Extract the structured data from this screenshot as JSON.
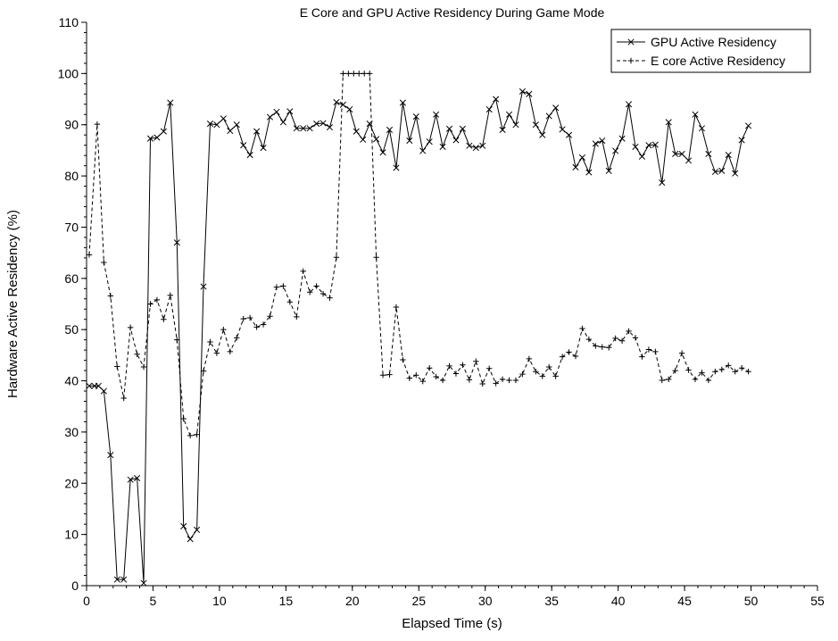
{
  "chart_data": {
    "type": "line",
    "title": "E Core and GPU Active Residency During Game Mode",
    "xlabel": "Elapsed Time (s)",
    "ylabel": "Hardware Active Residency (%)",
    "xlim": [
      0,
      55
    ],
    "ylim": [
      0,
      110
    ],
    "x_ticks": [
      0,
      5,
      10,
      15,
      20,
      25,
      30,
      35,
      40,
      45,
      50,
      55
    ],
    "y_ticks": [
      0,
      10,
      20,
      30,
      40,
      50,
      60,
      70,
      80,
      90,
      100,
      110
    ],
    "x_tick_labels": [
      "0",
      "5",
      "10",
      "15",
      "20",
      "25",
      "30",
      "35",
      "40",
      "45",
      "50",
      "55"
    ],
    "y_tick_labels": [
      "0",
      "10",
      "20",
      "30",
      "40",
      "50",
      "60",
      "70",
      "80",
      "90",
      "100",
      "110"
    ],
    "x_minor_step": 1,
    "y_minor_step": 2,
    "grid": false,
    "legend_position": "top-right",
    "series": [
      {
        "name": "GPU Active Residency",
        "line_style": "solid",
        "marker": "x",
        "color": "#000000",
        "x": [
          0.2,
          0.6,
          0.9,
          1.3,
          1.8,
          2.3,
          2.8,
          3.3,
          3.8,
          4.3,
          4.8,
          5.3,
          5.8,
          6.3,
          6.8,
          7.3,
          7.8,
          8.3,
          8.8,
          9.3,
          9.8,
          10.3,
          10.8,
          11.3,
          11.8,
          12.3,
          12.8,
          13.3,
          13.8,
          14.3,
          14.8,
          15.3,
          15.8,
          16.3,
          16.8,
          17.3,
          17.8,
          18.3,
          18.8,
          19.3,
          19.8,
          20.3,
          20.8,
          21.3,
          21.8,
          22.3,
          22.8,
          23.3,
          23.8,
          24.3,
          24.8,
          25.3,
          25.8,
          26.3,
          26.8,
          27.3,
          27.8,
          28.3,
          28.8,
          29.3,
          29.8,
          30.3,
          30.8,
          31.3,
          31.8,
          32.3,
          32.8,
          33.3,
          33.8,
          34.3,
          34.8,
          35.3,
          35.8,
          36.3,
          36.8,
          37.3,
          37.8,
          38.3,
          38.8,
          39.3,
          39.8,
          40.3,
          40.8,
          41.3,
          41.8,
          42.3,
          42.8,
          43.3,
          43.8,
          44.3,
          44.8,
          45.3,
          45.8,
          46.3,
          46.8,
          47.3,
          47.8,
          48.3,
          48.8,
          49.3,
          49.8
        ],
        "values": [
          39.0,
          39.0,
          39.0,
          38.0,
          25.5,
          1.2,
          1.2,
          20.7,
          21.0,
          0.5,
          87.3,
          87.5,
          88.7,
          94.3,
          67.0,
          11.6,
          9.1,
          10.9,
          58.4,
          90.2,
          90.0,
          91.2,
          88.8,
          90.0,
          86.0,
          84.1,
          88.7,
          85.5,
          91.5,
          92.5,
          90.5,
          92.6,
          89.3,
          89.3,
          89.3,
          90.2,
          90.3,
          89.5,
          94.4,
          93.9,
          93.0,
          88.7,
          87.1,
          90.2,
          87.2,
          84.6,
          89.0,
          81.6,
          94.3,
          86.9,
          91.6,
          84.9,
          86.7,
          92.0,
          85.7,
          89.2,
          87.0,
          89.2,
          85.9,
          85.5,
          85.9,
          93.0,
          95.0,
          89.0,
          92.0,
          90.0,
          96.5,
          96.0,
          90.0,
          88.0,
          91.7,
          93.3,
          89.1,
          88.0,
          81.7,
          83.6,
          80.7,
          86.3,
          86.9,
          81.0,
          84.9,
          87.3,
          94.0,
          85.7,
          83.8,
          86.0,
          86.1,
          78.7,
          90.5,
          84.3,
          84.3,
          83.0,
          92.0,
          89.3,
          84.3,
          80.8,
          81.0,
          84.1,
          80.5,
          87.0,
          89.8
        ]
      },
      {
        "name": "E core Active Residency",
        "line_style": "dashed",
        "marker": "+",
        "color": "#000000",
        "x": [
          0.2,
          0.8,
          1.3,
          1.8,
          2.3,
          2.8,
          3.3,
          3.8,
          4.3,
          4.8,
          5.3,
          5.8,
          6.3,
          6.8,
          7.3,
          7.8,
          8.3,
          8.8,
          9.3,
          9.8,
          10.3,
          10.8,
          11.3,
          11.8,
          12.3,
          12.8,
          13.3,
          13.8,
          14.3,
          14.8,
          15.3,
          15.8,
          16.3,
          16.8,
          17.3,
          17.8,
          18.3,
          18.8,
          19.3,
          19.7,
          20.1,
          20.5,
          20.9,
          21.3,
          21.8,
          22.3,
          22.8,
          23.3,
          23.8,
          24.3,
          24.8,
          25.3,
          25.8,
          26.3,
          26.8,
          27.3,
          27.8,
          28.3,
          28.8,
          29.3,
          29.8,
          30.3,
          30.8,
          31.3,
          31.8,
          32.3,
          32.8,
          33.3,
          33.8,
          34.3,
          34.8,
          35.3,
          35.8,
          36.3,
          36.8,
          37.3,
          37.8,
          38.3,
          38.8,
          39.3,
          39.8,
          40.3,
          40.8,
          41.3,
          41.8,
          42.3,
          42.8,
          43.3,
          43.8,
          44.3,
          44.8,
          45.3,
          45.8,
          46.3,
          46.8,
          47.3,
          47.8,
          48.3,
          48.8,
          49.3,
          49.8
        ],
        "values": [
          64.6,
          90.1,
          63.1,
          56.6,
          42.8,
          36.6,
          50.4,
          45.2,
          42.7,
          55.0,
          55.8,
          52.0,
          56.7,
          48.0,
          32.6,
          29.3,
          29.5,
          41.9,
          47.6,
          45.4,
          50.0,
          45.7,
          48.4,
          52.1,
          52.3,
          50.5,
          51.0,
          52.6,
          58.3,
          58.5,
          55.4,
          52.5,
          61.4,
          57.3,
          58.5,
          57.0,
          56.2,
          64.1,
          100.0,
          100.0,
          100.0,
          100.0,
          100.0,
          100.0,
          64.1,
          41.1,
          41.2,
          54.4,
          44.1,
          40.5,
          41.1,
          39.9,
          42.5,
          40.8,
          40.1,
          42.9,
          41.4,
          43.1,
          40.2,
          43.8,
          39.4,
          42.4,
          39.5,
          40.3,
          40.1,
          40.1,
          41.3,
          44.3,
          41.8,
          40.9,
          42.7,
          40.9,
          44.7,
          45.6,
          44.8,
          50.2,
          48.1,
          46.8,
          46.6,
          46.5,
          48.3,
          47.8,
          49.7,
          48.4,
          44.7,
          46.1,
          45.7,
          40.1,
          40.3,
          42.0,
          45.4,
          42.1,
          40.3,
          41.6,
          40.1,
          41.8,
          42.2,
          43.0,
          41.8,
          42.5,
          41.8
        ]
      }
    ]
  }
}
